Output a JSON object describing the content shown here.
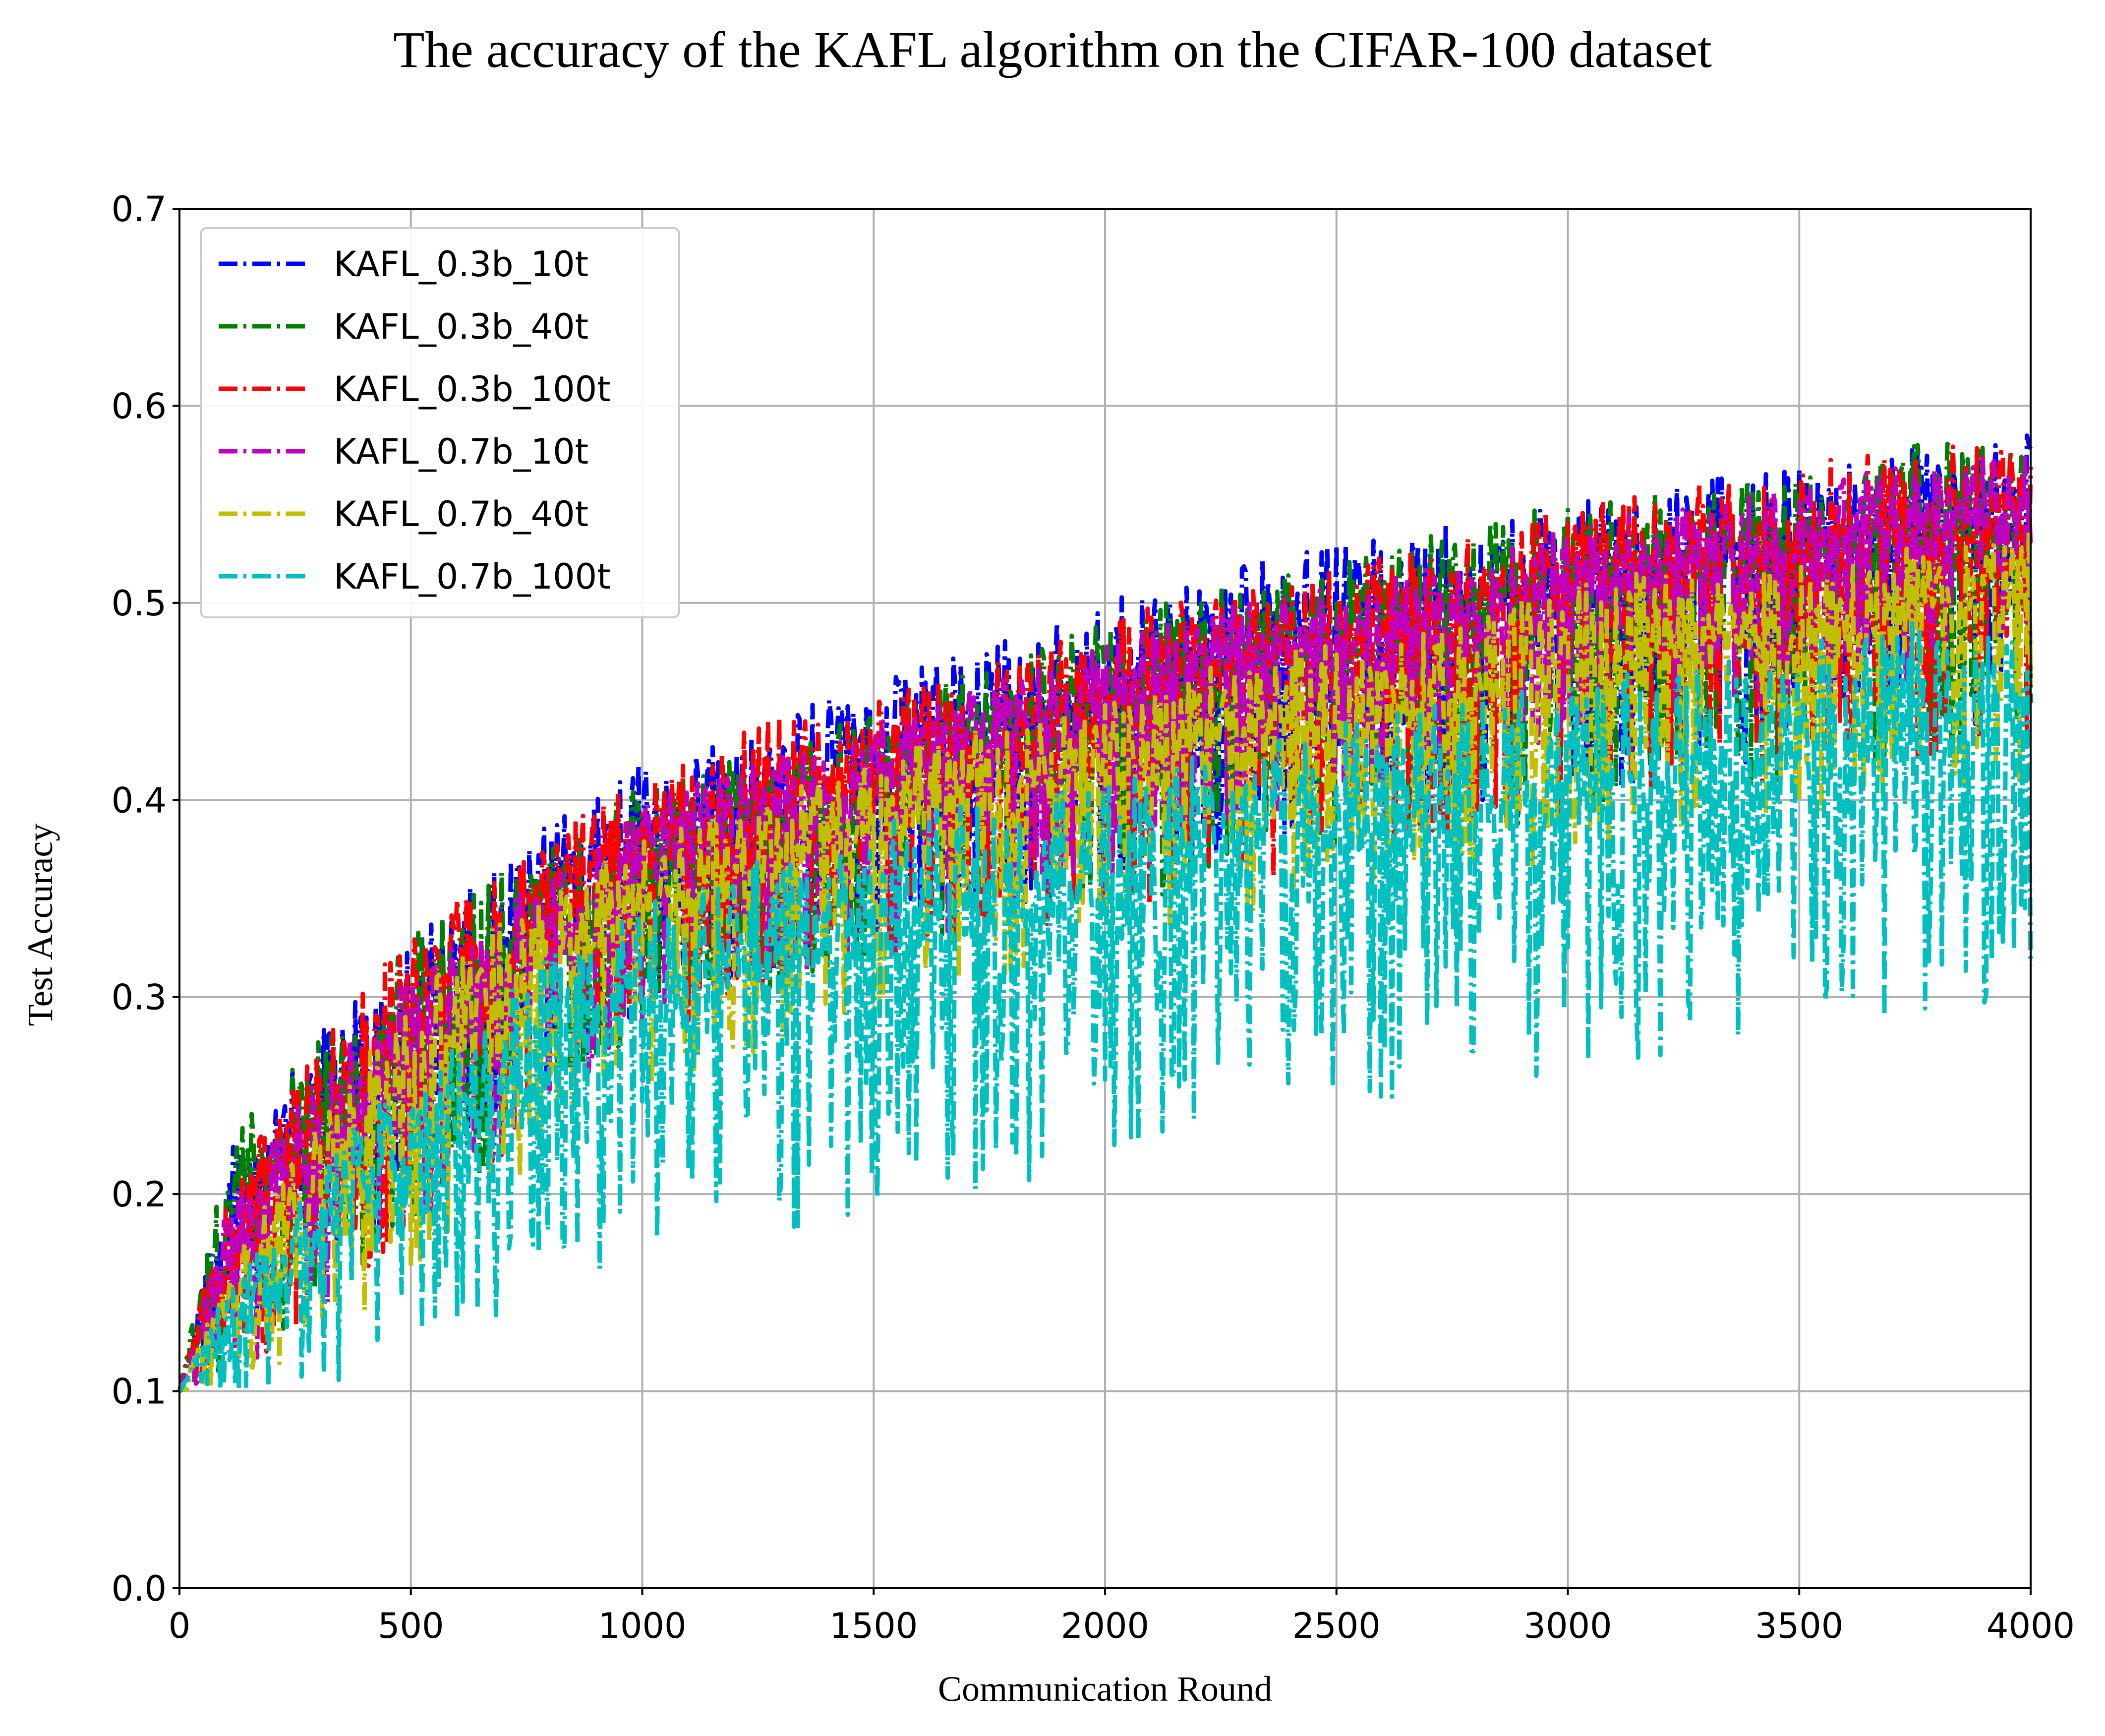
{
  "chart_data": {
    "type": "line",
    "title": "The accuracy of the KAFL algorithm on the CIFAR-100 dataset",
    "xlabel": "Communication Round",
    "ylabel": "Test Accuracy",
    "xlim": [
      0,
      4000
    ],
    "ylim": [
      0.0,
      0.7
    ],
    "xticks": [
      "0",
      "500",
      "1000",
      "1500",
      "2000",
      "2500",
      "3000",
      "3500",
      "4000"
    ],
    "yticks": [
      "0.0",
      "0.1",
      "0.2",
      "0.3",
      "0.4",
      "0.5",
      "0.6",
      "0.7"
    ],
    "grid": true,
    "legend_position": "upper-left",
    "line_style": "dash-dot",
    "series": [
      {
        "name": "KAFL_0.3b_10t",
        "color": "#0000ff",
        "x": [
          0,
          100,
          200,
          300,
          400,
          500,
          600,
          700,
          800,
          900,
          1000,
          1250,
          1500,
          1750,
          2000,
          2250,
          2500,
          2750,
          3000,
          3250,
          3500,
          3750,
          4000
        ],
        "upper": [
          0.1,
          0.22,
          0.25,
          0.28,
          0.31,
          0.33,
          0.35,
          0.37,
          0.39,
          0.4,
          0.42,
          0.44,
          0.46,
          0.48,
          0.5,
          0.52,
          0.53,
          0.54,
          0.55,
          0.56,
          0.57,
          0.58,
          0.59
        ],
        "lower": [
          0.1,
          0.11,
          0.13,
          0.15,
          0.17,
          0.19,
          0.21,
          0.23,
          0.25,
          0.27,
          0.29,
          0.31,
          0.33,
          0.34,
          0.35,
          0.37,
          0.38,
          0.39,
          0.4,
          0.41,
          0.42,
          0.43,
          0.44
        ]
      },
      {
        "name": "KAFL_0.3b_40t",
        "color": "#008000",
        "x": [
          0,
          100,
          200,
          300,
          400,
          500,
          600,
          700,
          800,
          900,
          1000,
          1250,
          1500,
          1750,
          2000,
          2250,
          2500,
          2750,
          3000,
          3250,
          3500,
          3750,
          4000
        ],
        "upper": [
          0.1,
          0.23,
          0.25,
          0.28,
          0.3,
          0.33,
          0.35,
          0.37,
          0.38,
          0.4,
          0.41,
          0.43,
          0.45,
          0.47,
          0.49,
          0.51,
          0.52,
          0.54,
          0.55,
          0.56,
          0.57,
          0.58,
          0.59
        ],
        "lower": [
          0.1,
          0.11,
          0.12,
          0.14,
          0.16,
          0.18,
          0.2,
          0.22,
          0.24,
          0.26,
          0.28,
          0.3,
          0.32,
          0.33,
          0.34,
          0.36,
          0.37,
          0.38,
          0.39,
          0.4,
          0.41,
          0.42,
          0.43
        ]
      },
      {
        "name": "KAFL_0.3b_100t",
        "color": "#ff0000",
        "x": [
          0,
          100,
          200,
          300,
          400,
          500,
          600,
          700,
          800,
          900,
          1000,
          1250,
          1500,
          1750,
          2000,
          2250,
          2500,
          2750,
          3000,
          3250,
          3500,
          3750,
          4000
        ],
        "upper": [
          0.1,
          0.2,
          0.24,
          0.28,
          0.31,
          0.33,
          0.35,
          0.36,
          0.39,
          0.4,
          0.41,
          0.44,
          0.45,
          0.47,
          0.49,
          0.51,
          0.52,
          0.53,
          0.55,
          0.56,
          0.57,
          0.58,
          0.58
        ],
        "lower": [
          0.1,
          0.11,
          0.12,
          0.14,
          0.16,
          0.18,
          0.2,
          0.22,
          0.24,
          0.26,
          0.28,
          0.3,
          0.31,
          0.33,
          0.34,
          0.35,
          0.37,
          0.38,
          0.39,
          0.4,
          0.41,
          0.42,
          0.43
        ]
      },
      {
        "name": "KAFL_0.7b_10t",
        "color": "#bf00bf",
        "x": [
          0,
          100,
          200,
          300,
          400,
          500,
          600,
          700,
          800,
          900,
          1000,
          1250,
          1500,
          1750,
          2000,
          2250,
          2500,
          2750,
          3000,
          3250,
          3500,
          3750,
          4000
        ],
        "upper": [
          0.1,
          0.19,
          0.23,
          0.26,
          0.29,
          0.31,
          0.33,
          0.35,
          0.37,
          0.38,
          0.4,
          0.42,
          0.44,
          0.46,
          0.48,
          0.5,
          0.51,
          0.52,
          0.54,
          0.55,
          0.56,
          0.57,
          0.58
        ],
        "lower": [
          0.1,
          0.11,
          0.12,
          0.14,
          0.16,
          0.18,
          0.2,
          0.22,
          0.24,
          0.26,
          0.28,
          0.3,
          0.32,
          0.34,
          0.36,
          0.38,
          0.4,
          0.41,
          0.43,
          0.44,
          0.45,
          0.46,
          0.47
        ]
      },
      {
        "name": "KAFL_0.7b_40t",
        "color": "#bfbf00",
        "x": [
          0,
          100,
          200,
          300,
          400,
          500,
          600,
          700,
          800,
          900,
          1000,
          1250,
          1500,
          1750,
          2000,
          2250,
          2500,
          2750,
          3000,
          3250,
          3500,
          3750,
          4000
        ],
        "upper": [
          0.1,
          0.16,
          0.2,
          0.24,
          0.27,
          0.3,
          0.32,
          0.34,
          0.35,
          0.37,
          0.38,
          0.4,
          0.42,
          0.44,
          0.45,
          0.47,
          0.48,
          0.49,
          0.51,
          0.52,
          0.52,
          0.53,
          0.54
        ],
        "lower": [
          0.1,
          0.1,
          0.11,
          0.12,
          0.14,
          0.16,
          0.18,
          0.2,
          0.22,
          0.23,
          0.25,
          0.27,
          0.29,
          0.31,
          0.32,
          0.34,
          0.35,
          0.36,
          0.37,
          0.38,
          0.39,
          0.4,
          0.41
        ]
      },
      {
        "name": "KAFL_0.7b_100t",
        "color": "#00bfbf",
        "x": [
          0,
          100,
          200,
          300,
          400,
          500,
          600,
          700,
          800,
          900,
          1000,
          1250,
          1500,
          1750,
          2000,
          2250,
          2500,
          2750,
          3000,
          3250,
          3500,
          3750,
          4000
        ],
        "upper": [
          0.1,
          0.15,
          0.18,
          0.21,
          0.24,
          0.26,
          0.28,
          0.3,
          0.32,
          0.34,
          0.35,
          0.37,
          0.39,
          0.4,
          0.41,
          0.43,
          0.44,
          0.45,
          0.46,
          0.47,
          0.48,
          0.49,
          0.5
        ],
        "lower": [
          0.1,
          0.1,
          0.1,
          0.1,
          0.11,
          0.12,
          0.13,
          0.14,
          0.15,
          0.16,
          0.17,
          0.18,
          0.19,
          0.2,
          0.22,
          0.23,
          0.24,
          0.25,
          0.26,
          0.27,
          0.28,
          0.29,
          0.3
        ]
      }
    ]
  }
}
